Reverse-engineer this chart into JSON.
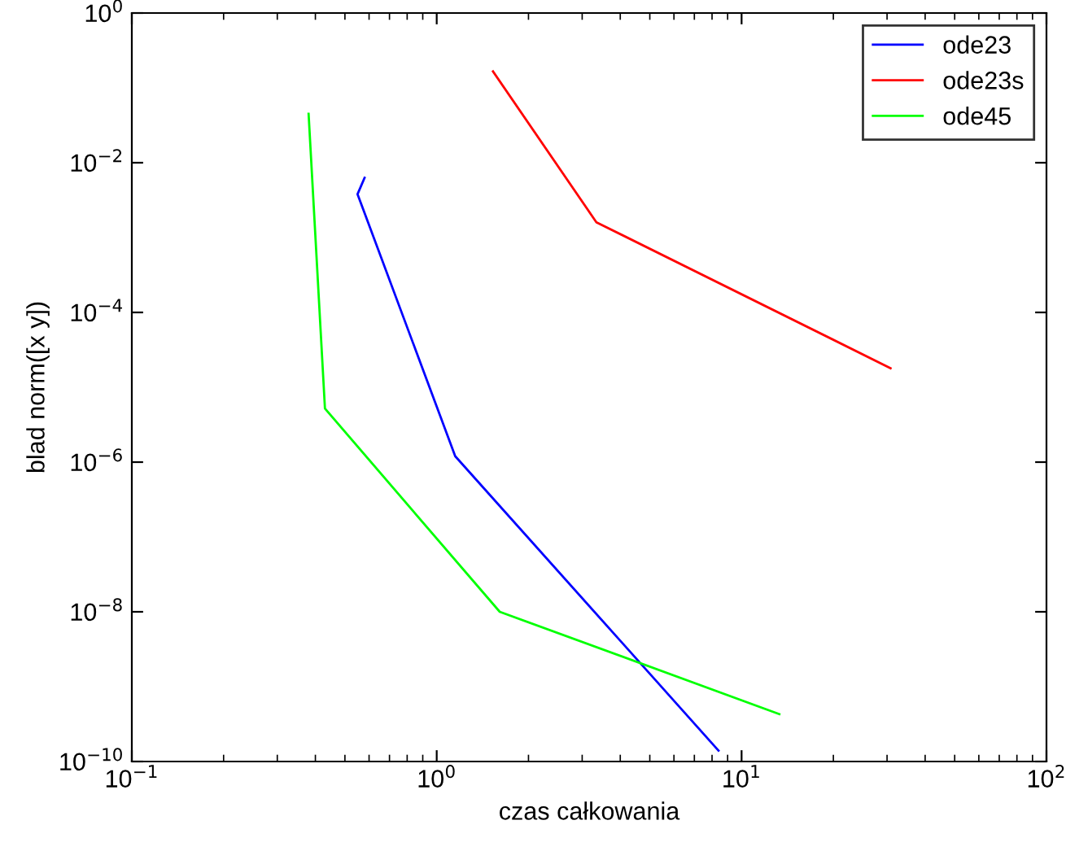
{
  "chart_data": {
    "type": "line",
    "xlabel": "czas całkowania",
    "ylabel": "blad norm([x y])",
    "log": "xy",
    "grid": false,
    "legend": "top right",
    "xlim": [
      0.1,
      100
    ],
    "ylim": [
      1e-10,
      1
    ],
    "xticks": [
      {
        "value": 0.1,
        "label": "10$^{−1}$"
      },
      {
        "value": 1,
        "label": "10$^{0}$"
      },
      {
        "value": 10,
        "label": "10$^{1}$"
      },
      {
        "value": 100,
        "label": "10$^{2}$"
      }
    ],
    "yticks": [
      {
        "value": 1e-10,
        "label": "10$^{−10}$"
      },
      {
        "value": 1e-08,
        "label": "10$^{−8}$"
      },
      {
        "value": 1e-06,
        "label": "10$^{−6}$"
      },
      {
        "value": 0.0001,
        "label": "10$^{−4}$"
      },
      {
        "value": 0.01,
        "label": "10$^{−2}$"
      },
      {
        "value": 1,
        "label": "10$^{0}$"
      }
    ],
    "series": [
      {
        "name": "ode23",
        "color": "#0000ff",
        "x": [
          0.58,
          0.55,
          1.15,
          8.4
        ],
        "values": [
          0.0063,
          0.0038,
          1.2e-06,
          1.4e-10
        ]
      },
      {
        "name": "ode23s",
        "color": "#ff0000",
        "x": [
          1.53,
          3.34,
          30.8
        ],
        "values": [
          0.166,
          0.0016,
          1.8e-05
        ]
      },
      {
        "name": "ode45",
        "color": "#00ff00",
        "x": [
          0.38,
          0.43,
          1.61,
          13.3
        ],
        "values": [
          0.045,
          5.2e-06,
          1e-08,
          4.3e-10
        ]
      }
    ]
  }
}
